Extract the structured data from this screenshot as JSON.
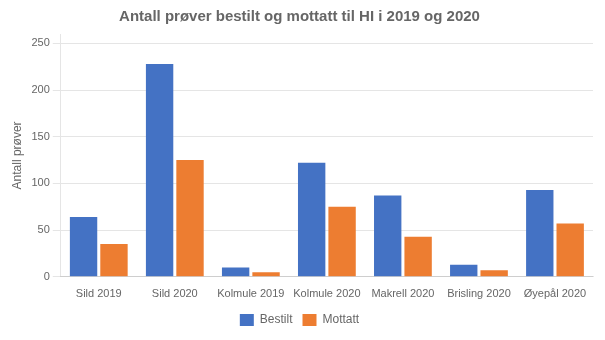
{
  "chart_data": {
    "type": "bar",
    "title": "Antall prøver bestilt og mottatt til HI i 2019 og 2020",
    "ylabel": "Antall prøver",
    "categories": [
      "Sild 2019",
      "Sild 2020",
      "Kolmule 2019",
      "Kolmule 2020",
      "Makrell 2020",
      "Brisling 2020",
      "Øyepål 2020"
    ],
    "series": [
      {
        "name": "Bestilt",
        "color": "#4472C4",
        "values": [
          64,
          228,
          10,
          122,
          87,
          13,
          93
        ]
      },
      {
        "name": "Mottatt",
        "color": "#ED7D31",
        "values": [
          35,
          125,
          5,
          75,
          43,
          7,
          57
        ]
      }
    ],
    "ylim": [
      0,
      260
    ],
    "yticks": [
      0,
      50,
      100,
      150,
      200,
      250
    ],
    "grid": true,
    "legend": "bottom"
  }
}
